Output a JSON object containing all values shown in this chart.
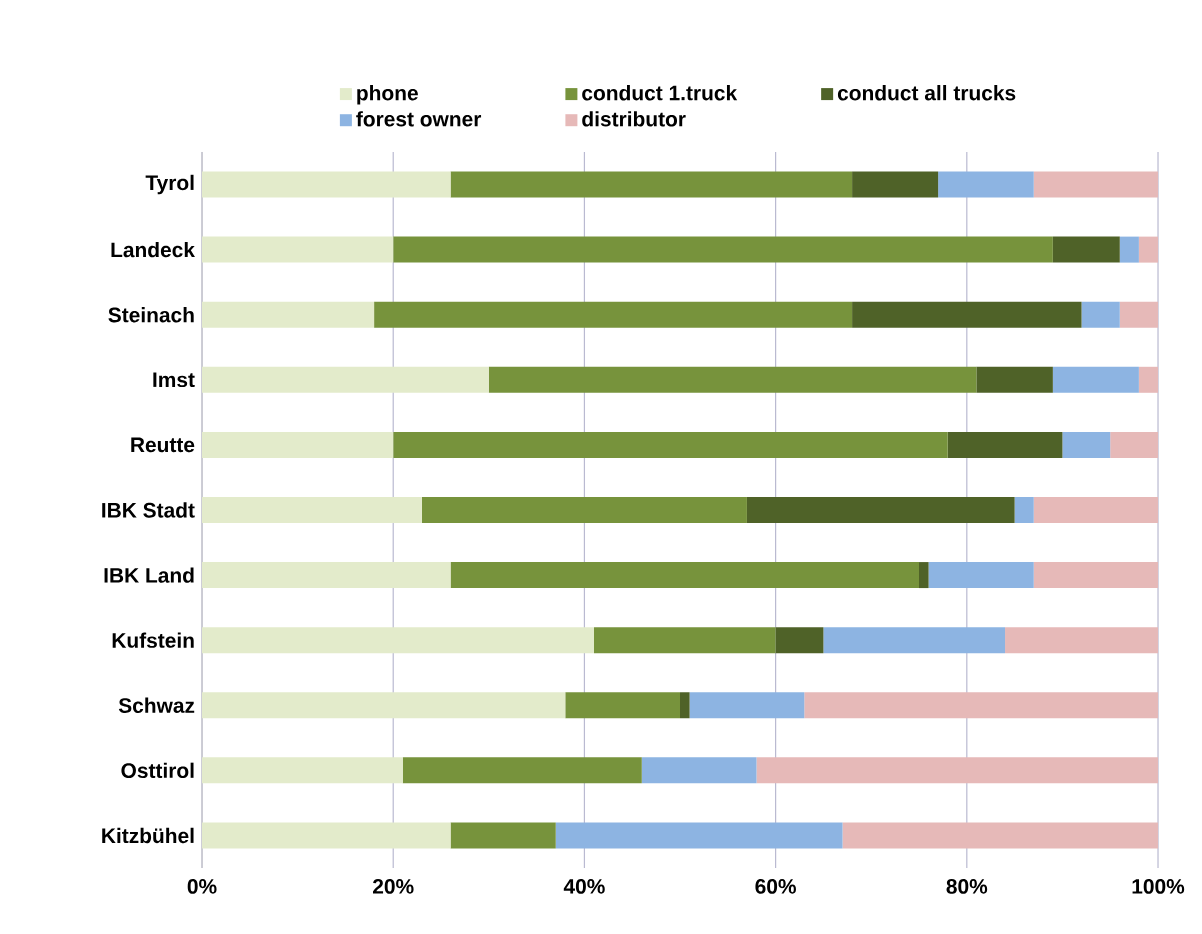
{
  "chart_data": {
    "type": "bar",
    "orientation": "horizontal",
    "stacked": true,
    "categories": [
      "Tyrol",
      "Landeck",
      "Steinach",
      "Imst",
      "Reutte",
      "IBK Stadt",
      "IBK Land",
      "Kufstein",
      "Schwaz",
      "Osttirol",
      "Kitzbühel"
    ],
    "series": [
      {
        "name": "phone",
        "color": "#e3ebcb",
        "values": [
          26,
          20,
          18,
          30,
          20,
          23,
          26,
          41,
          38,
          21,
          26
        ]
      },
      {
        "name": "conduct 1.truck",
        "color": "#77933c",
        "values": [
          42,
          69,
          50,
          51,
          58,
          34,
          49,
          19,
          12,
          25,
          11
        ]
      },
      {
        "name": "conduct all trucks",
        "color": "#4f6228",
        "values": [
          9,
          7,
          24,
          8,
          12,
          28,
          1,
          5,
          1,
          0,
          0
        ]
      },
      {
        "name": "forest owner",
        "color": "#8db4e2",
        "values": [
          10,
          2,
          4,
          9,
          5,
          2,
          11,
          19,
          12,
          12,
          30
        ]
      },
      {
        "name": "distributor",
        "color": "#e6b9b8",
        "values": [
          13,
          2,
          4,
          2,
          5,
          13,
          13,
          16,
          37,
          42,
          33
        ]
      }
    ],
    "xlim": [
      0,
      100
    ],
    "xticks": [
      {
        "value": 0,
        "label": "0%"
      },
      {
        "value": 20,
        "label": "20%"
      },
      {
        "value": 40,
        "label": "40%"
      },
      {
        "value": 60,
        "label": "60%"
      },
      {
        "value": 80,
        "label": "80%"
      },
      {
        "value": 100,
        "label": "100%"
      }
    ],
    "grid": "x",
    "legend": "top"
  }
}
